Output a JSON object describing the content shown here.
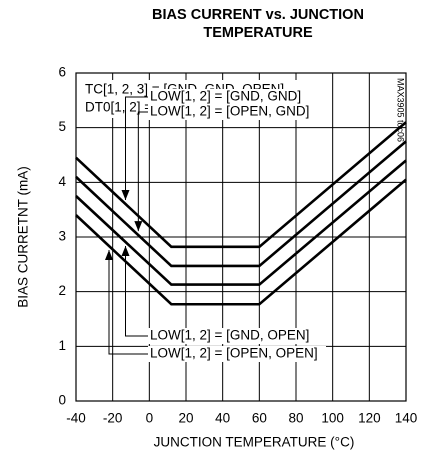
{
  "chart_data": {
    "type": "line",
    "title": "BIAS CURRENT vs. JUNCTION TEMPERATURE",
    "x_label": "JUNCTION TEMPERATURE (°C)",
    "y_label": "BIAS CURRETNT (mA)",
    "notes": [
      "TC[1, 2, 3] = [GND, GND, OPEN]",
      "DT0[1, 2] = [OPEN, OPEN]"
    ],
    "side_label": "MAX3905 toc06",
    "x": [
      -40,
      12,
      60,
      140
    ],
    "series": [
      {
        "name": "LOW[1, 2] = [GND, GND]",
        "color": "#000000",
        "values": [
          4.45,
          2.82,
          2.82,
          5.1
        ]
      },
      {
        "name": "LOW[1, 2] = [OPEN, GND]",
        "color": "#000000",
        "values": [
          4.1,
          2.47,
          2.47,
          4.75
        ]
      },
      {
        "name": "LOW[1, 2] = [GND, OPEN]",
        "color": "#000000",
        "values": [
          3.75,
          2.13,
          2.13,
          4.4
        ]
      },
      {
        "name": "LOW[1, 2] = [OPEN, OPEN]",
        "color": "#000000",
        "values": [
          3.4,
          1.77,
          1.77,
          4.05
        ]
      }
    ],
    "xlim": [
      -40,
      140
    ],
    "xticks": [
      -40,
      -20,
      0,
      20,
      40,
      60,
      80,
      100,
      120,
      140
    ],
    "ylim": [
      0,
      6
    ],
    "yticks": [
      0,
      1,
      2,
      3,
      4,
      5,
      6
    ],
    "grid": true
  }
}
